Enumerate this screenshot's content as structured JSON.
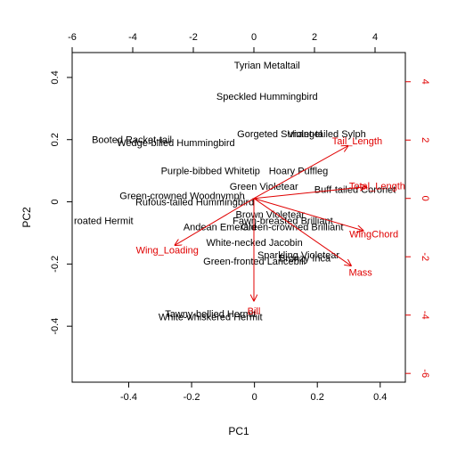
{
  "chart_data": {
    "type": "scatter",
    "subtype": "pca-biplot",
    "xlabel": "PC1",
    "ylabel": "PC2",
    "xlim": [
      -0.58,
      0.48
    ],
    "ylim": [
      -0.58,
      0.48
    ],
    "xlim_top": [
      -6.0,
      5.0
    ],
    "ylim_right": [
      -6.3,
      5.0
    ],
    "ticks_bottom": [
      -0.4,
      -0.2,
      0.0,
      0.2,
      0.4
    ],
    "ticks_left": [
      -0.4,
      -0.2,
      0.0,
      0.2,
      0.4
    ],
    "ticks_top": [
      -6,
      -4,
      -2,
      0,
      2,
      4
    ],
    "ticks_right": [
      -6,
      -4,
      -2,
      0,
      2,
      4
    ],
    "grid": false,
    "colors": {
      "points": "#000000",
      "loadings": "#e00000",
      "frame": "#000000"
    },
    "observations": [
      {
        "label": "Tyrian Metaltail",
        "x": 0.04,
        "y": 0.44
      },
      {
        "label": "Speckled Hummingbird",
        "x": 0.04,
        "y": 0.34
      },
      {
        "label": "Gorgeted Sunangel",
        "x": 0.08,
        "y": 0.22
      },
      {
        "label": "Violet-tailed Sylph",
        "x": 0.23,
        "y": 0.22
      },
      {
        "label": "Booted Racket-tail",
        "x": -0.39,
        "y": 0.2
      },
      {
        "label": "Wedge-billed Hummingbird",
        "x": -0.25,
        "y": 0.19
      },
      {
        "label": "Purple-bibbed Whitetip",
        "x": -0.14,
        "y": 0.1
      },
      {
        "label": "Hoary Puffleg",
        "x": 0.14,
        "y": 0.1
      },
      {
        "label": "Green Violetear",
        "x": 0.03,
        "y": 0.05
      },
      {
        "label": "Buff-tailed Coronet",
        "x": 0.32,
        "y": 0.04
      },
      {
        "label": "Green-crowned Woodnymph",
        "x": -0.23,
        "y": 0.02
      },
      {
        "label": "Rufous-tailed Hummingbird",
        "x": -0.19,
        "y": 0.0
      },
      {
        "label": "Brown Violetear",
        "x": 0.05,
        "y": -0.04
      },
      {
        "label": "Fawn-breasted Brilliant",
        "x": 0.09,
        "y": -0.06
      },
      {
        "label": "Green-crowned Brilliant",
        "x": 0.12,
        "y": -0.08
      },
      {
        "label": "Andean Emerald",
        "x": -0.11,
        "y": -0.08
      },
      {
        "label": "White-necked Jacobin",
        "x": 0.0,
        "y": -0.13
      },
      {
        "label": "Sparkling Violetear",
        "x": 0.14,
        "y": -0.17
      },
      {
        "label": "Bronzy Inca",
        "x": 0.16,
        "y": -0.18
      },
      {
        "label": "Green-fronted Lancebill",
        "x": 0.0,
        "y": -0.19
      },
      {
        "label": "Tawny-bellied Hermit",
        "x": -0.14,
        "y": -0.36
      },
      {
        "label": "White-whiskered Hermit",
        "x": -0.14,
        "y": -0.37
      },
      {
        "label": "roated Hermit",
        "x": -0.48,
        "y": -0.06
      }
    ],
    "loadings": [
      {
        "label": "Tail_Length",
        "x": 3.1,
        "y": 1.8
      },
      {
        "label": "Total_Length",
        "x": 3.7,
        "y": 0.4
      },
      {
        "label": "WingChord",
        "x": 3.6,
        "y": -1.1
      },
      {
        "label": "Mass",
        "x": 3.2,
        "y": -2.3
      },
      {
        "label": "Wing_Loading",
        "x": -2.6,
        "y": -1.6
      },
      {
        "label": "Bill",
        "x": 0.0,
        "y": -3.5
      }
    ]
  }
}
